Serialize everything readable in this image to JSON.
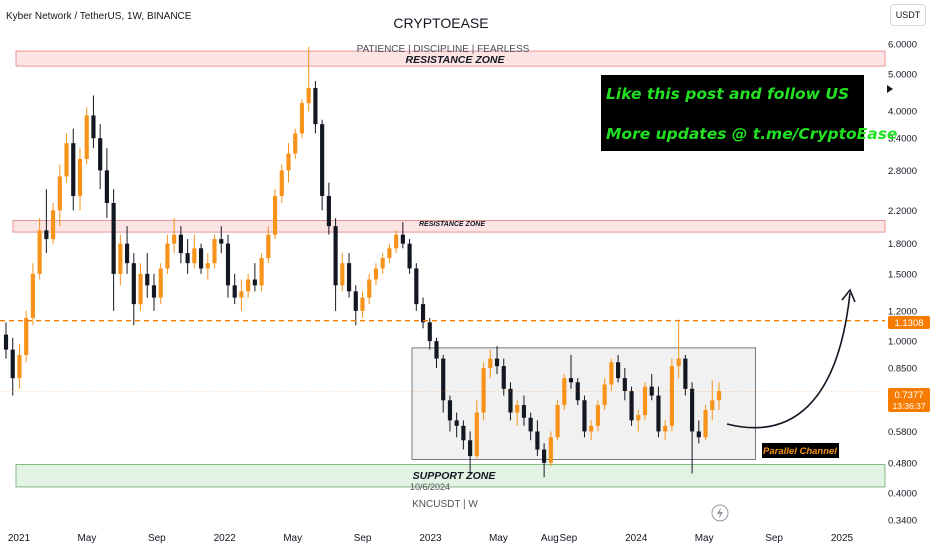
{
  "header": {
    "symbol_title": "Kyber Network / TetherUS, 1W, BINANCE",
    "brand": "CRYPTOEASE",
    "tagline": "PATIENCE  |  DISCIPLINE  |  FEARLESS",
    "watermark": "KNCUSDT | W",
    "currency_button": "USDT"
  },
  "promo": {
    "line1": "Like this post and follow US",
    "line2": "More updates @ t.me/CryptoEase",
    "bg_color": "#000000",
    "text_color": "#22e022"
  },
  "zones": {
    "resistance_top_label": "RESISTANCE ZONE",
    "resistance_mid_label": "RESISTANCE ZONE",
    "support_label": "SUPPORT ZONE",
    "channel_label": "Parallel Channel",
    "date_hover": "10/6/2024"
  },
  "colors": {
    "up": "#f7931a",
    "down": "#131722",
    "resistance_fill": "#fde4e4",
    "support_fill": "#e3f3e3",
    "channel_fill": "#ececec",
    "level_line": "#f57c00",
    "price_badge": "#f57c00"
  },
  "icons": {
    "lightning": "lightning-icon",
    "arrow": "chevron-right-icon"
  },
  "chart_data": {
    "type": "candlestick",
    "scale": "log",
    "ylim": [
      0.34,
      6.0
    ],
    "y_ticks": [
      "6.0000",
      "5.0000",
      "4.0000",
      "3.4000",
      "2.8000",
      "2.2000",
      "1.8000",
      "1.5000",
      "1.2000",
      "1.0000",
      "0.8500",
      "0.6800",
      "0.5800",
      "0.4800",
      "0.4000",
      "0.3400"
    ],
    "x_ticks": [
      {
        "label": "2021",
        "t": 2021.0
      },
      {
        "label": "May",
        "t": 2021.33
      },
      {
        "label": "Sep",
        "t": 2021.67
      },
      {
        "label": "2022",
        "t": 2022.0
      },
      {
        "label": "May",
        "t": 2022.33
      },
      {
        "label": "Sep",
        "t": 2022.67
      },
      {
        "label": "2023",
        "t": 2023.0
      },
      {
        "label": "May",
        "t": 2023.33
      },
      {
        "label": "Aug",
        "t": 2023.58
      },
      {
        "label": "Sep",
        "t": 2023.67
      },
      {
        "label": "2024",
        "t": 2024.0
      },
      {
        "label": "May",
        "t": 2024.33
      },
      {
        "label": "Sep",
        "t": 2024.67
      },
      {
        "label": "2025",
        "t": 2025.0
      }
    ],
    "current_price": "0.7377",
    "countdown": "13:36:37",
    "level_price": "1.1308",
    "level_value": 1.1308,
    "resistance_zones": [
      [
        5.25,
        5.75
      ],
      [
        1.93,
        2.07
      ]
    ],
    "support_zone": [
      0.415,
      0.475
    ],
    "channel": {
      "t0": 2022.91,
      "t1": 2024.58,
      "low": 0.49,
      "high": 0.96
    },
    "candles": [
      [
        1.04,
        1.12,
        0.9,
        0.95
      ],
      [
        0.95,
        1.02,
        0.72,
        0.8
      ],
      [
        0.8,
        0.98,
        0.75,
        0.92
      ],
      [
        0.92,
        1.2,
        0.88,
        1.15
      ],
      [
        1.15,
        1.6,
        1.1,
        1.5
      ],
      [
        1.5,
        2.1,
        1.45,
        1.95
      ],
      [
        1.95,
        2.5,
        1.7,
        1.85
      ],
      [
        1.85,
        2.3,
        1.8,
        2.2
      ],
      [
        2.2,
        2.9,
        2.0,
        2.7
      ],
      [
        2.7,
        3.5,
        2.6,
        3.3
      ],
      [
        3.3,
        3.6,
        2.2,
        2.4
      ],
      [
        2.4,
        3.2,
        2.2,
        3.0
      ],
      [
        3.0,
        4.1,
        2.9,
        3.9
      ],
      [
        3.9,
        4.4,
        3.2,
        3.4
      ],
      [
        3.4,
        3.7,
        2.5,
        2.8
      ],
      [
        2.8,
        3.2,
        2.1,
        2.3
      ],
      [
        2.3,
        2.5,
        1.2,
        1.5
      ],
      [
        1.5,
        1.9,
        1.4,
        1.8
      ],
      [
        1.8,
        2.0,
        1.5,
        1.6
      ],
      [
        1.6,
        1.7,
        1.1,
        1.25
      ],
      [
        1.25,
        1.6,
        1.2,
        1.5
      ],
      [
        1.5,
        1.7,
        1.3,
        1.4
      ],
      [
        1.4,
        1.5,
        1.2,
        1.3
      ],
      [
        1.3,
        1.6,
        1.25,
        1.55
      ],
      [
        1.55,
        1.9,
        1.5,
        1.8
      ],
      [
        1.8,
        2.1,
        1.7,
        1.9
      ],
      [
        1.9,
        2.0,
        1.6,
        1.7
      ],
      [
        1.7,
        1.85,
        1.5,
        1.6
      ],
      [
        1.6,
        1.9,
        1.55,
        1.75
      ],
      [
        1.75,
        1.8,
        1.5,
        1.55
      ],
      [
        1.55,
        1.7,
        1.45,
        1.6
      ],
      [
        1.6,
        1.9,
        1.55,
        1.85
      ],
      [
        1.85,
        2.0,
        1.7,
        1.8
      ],
      [
        1.8,
        1.9,
        1.3,
        1.4
      ],
      [
        1.4,
        1.5,
        1.25,
        1.3
      ],
      [
        1.3,
        1.45,
        1.2,
        1.35
      ],
      [
        1.35,
        1.5,
        1.3,
        1.45
      ],
      [
        1.45,
        1.6,
        1.35,
        1.4
      ],
      [
        1.4,
        1.7,
        1.35,
        1.65
      ],
      [
        1.65,
        2.0,
        1.6,
        1.9
      ],
      [
        1.9,
        2.5,
        1.85,
        2.4
      ],
      [
        2.4,
        2.9,
        2.3,
        2.8
      ],
      [
        2.8,
        3.3,
        2.6,
        3.1
      ],
      [
        3.1,
        3.6,
        3.0,
        3.5
      ],
      [
        3.5,
        4.3,
        3.4,
        4.2
      ],
      [
        4.2,
        5.9,
        4.0,
        4.6
      ],
      [
        4.6,
        4.8,
        3.5,
        3.7
      ],
      [
        3.7,
        3.8,
        2.2,
        2.4
      ],
      [
        2.4,
        2.6,
        1.9,
        2.0
      ],
      [
        2.0,
        2.1,
        1.2,
        1.4
      ],
      [
        1.4,
        1.7,
        1.35,
        1.6
      ],
      [
        1.6,
        1.7,
        1.3,
        1.35
      ],
      [
        1.35,
        1.4,
        1.1,
        1.2
      ],
      [
        1.2,
        1.35,
        1.15,
        1.3
      ],
      [
        1.3,
        1.5,
        1.25,
        1.45
      ],
      [
        1.45,
        1.6,
        1.4,
        1.55
      ],
      [
        1.55,
        1.7,
        1.5,
        1.65
      ],
      [
        1.65,
        1.8,
        1.6,
        1.75
      ],
      [
        1.75,
        1.95,
        1.7,
        1.9
      ],
      [
        1.9,
        2.05,
        1.75,
        1.8
      ],
      [
        1.8,
        1.85,
        1.5,
        1.55
      ],
      [
        1.55,
        1.6,
        1.2,
        1.25
      ],
      [
        1.25,
        1.3,
        1.08,
        1.12
      ],
      [
        1.12,
        1.15,
        0.95,
        1.0
      ],
      [
        1.0,
        1.02,
        0.85,
        0.9
      ],
      [
        0.9,
        0.92,
        0.65,
        0.7
      ],
      [
        0.7,
        0.72,
        0.58,
        0.62
      ],
      [
        0.62,
        0.65,
        0.56,
        0.6
      ],
      [
        0.6,
        0.62,
        0.52,
        0.55
      ],
      [
        0.55,
        0.58,
        0.45,
        0.5
      ],
      [
        0.5,
        0.7,
        0.49,
        0.65
      ],
      [
        0.65,
        0.88,
        0.62,
        0.85
      ],
      [
        0.85,
        0.95,
        0.8,
        0.9
      ],
      [
        0.9,
        0.97,
        0.82,
        0.86
      ],
      [
        0.86,
        0.9,
        0.72,
        0.75
      ],
      [
        0.75,
        0.78,
        0.62,
        0.65
      ],
      [
        0.65,
        0.7,
        0.6,
        0.68
      ],
      [
        0.68,
        0.72,
        0.6,
        0.63
      ],
      [
        0.63,
        0.65,
        0.55,
        0.58
      ],
      [
        0.58,
        0.62,
        0.5,
        0.52
      ],
      [
        0.52,
        0.54,
        0.44,
        0.48
      ],
      [
        0.48,
        0.58,
        0.47,
        0.56
      ],
      [
        0.56,
        0.7,
        0.55,
        0.68
      ],
      [
        0.68,
        0.82,
        0.66,
        0.8
      ],
      [
        0.8,
        0.92,
        0.75,
        0.78
      ],
      [
        0.78,
        0.8,
        0.68,
        0.7
      ],
      [
        0.7,
        0.72,
        0.56,
        0.58
      ],
      [
        0.58,
        0.62,
        0.55,
        0.6
      ],
      [
        0.6,
        0.7,
        0.58,
        0.68
      ],
      [
        0.68,
        0.8,
        0.66,
        0.77
      ],
      [
        0.77,
        0.9,
        0.74,
        0.88
      ],
      [
        0.88,
        0.92,
        0.78,
        0.8
      ],
      [
        0.8,
        0.85,
        0.7,
        0.74
      ],
      [
        0.74,
        0.76,
        0.6,
        0.62
      ],
      [
        0.62,
        0.66,
        0.58,
        0.64
      ],
      [
        0.64,
        0.78,
        0.62,
        0.76
      ],
      [
        0.76,
        0.82,
        0.7,
        0.72
      ],
      [
        0.72,
        0.76,
        0.56,
        0.58
      ],
      [
        0.58,
        0.62,
        0.55,
        0.6
      ],
      [
        0.6,
        0.9,
        0.58,
        0.86
      ],
      [
        0.86,
        1.14,
        0.8,
        0.9
      ],
      [
        0.9,
        0.92,
        0.72,
        0.75
      ],
      [
        0.75,
        0.78,
        0.45,
        0.58
      ],
      [
        0.58,
        0.62,
        0.54,
        0.56
      ],
      [
        0.56,
        0.68,
        0.55,
        0.66
      ],
      [
        0.66,
        0.79,
        0.62,
        0.7
      ],
      [
        0.7,
        0.78,
        0.66,
        0.74
      ]
    ]
  }
}
